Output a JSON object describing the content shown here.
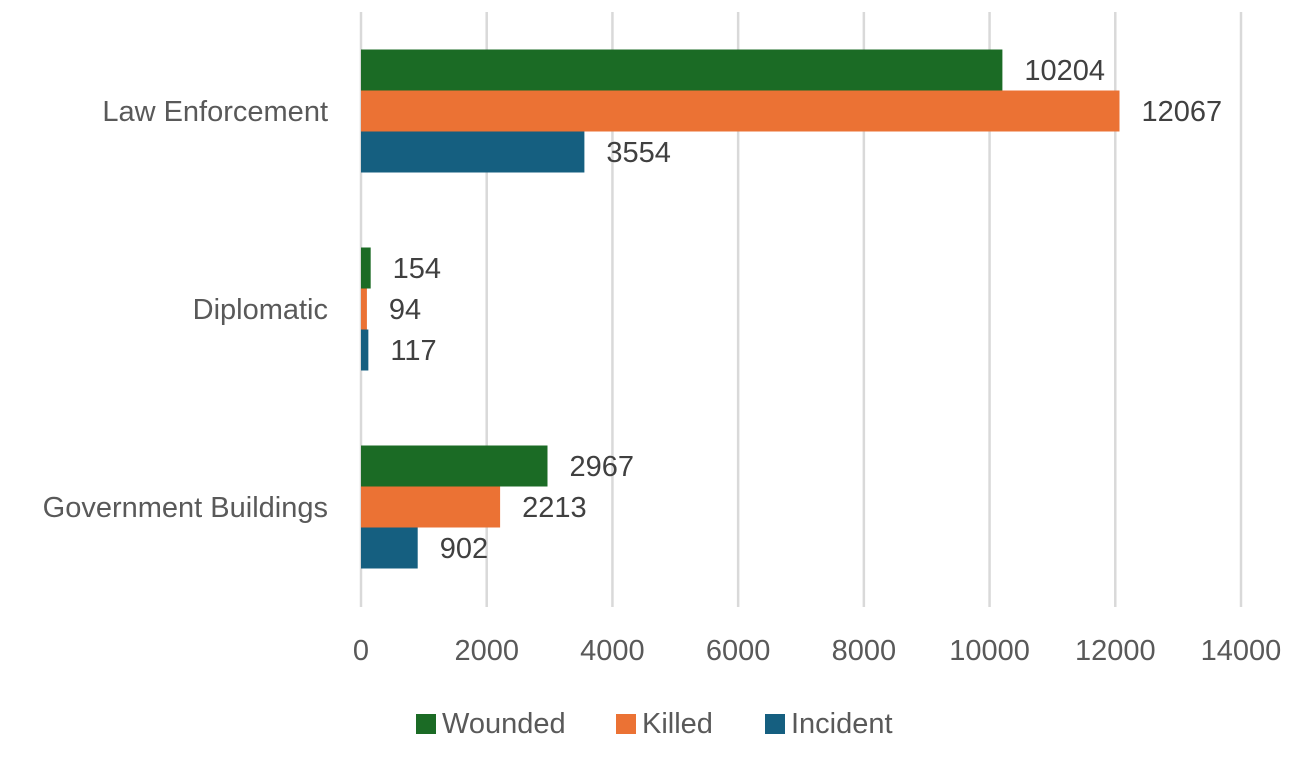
{
  "chart_data": {
    "type": "bar",
    "orientation": "horizontal",
    "categories": [
      "Law Enforcement",
      "Diplomatic",
      "Government Buildings"
    ],
    "series": [
      {
        "name": "Wounded",
        "color": "#1b6b25",
        "values": [
          10204,
          154,
          2967
        ]
      },
      {
        "name": "Killed",
        "color": "#eb7234",
        "values": [
          12067,
          94,
          2213
        ]
      },
      {
        "name": "Incident",
        "color": "#155f80",
        "values": [
          3554,
          117,
          902
        ]
      }
    ],
    "xlim": [
      0,
      14000
    ],
    "xticks": [
      "0",
      "2000",
      "4000",
      "6000",
      "8000",
      "10000",
      "12000",
      "14000"
    ],
    "grid": "vertical",
    "legend": "bottom"
  }
}
